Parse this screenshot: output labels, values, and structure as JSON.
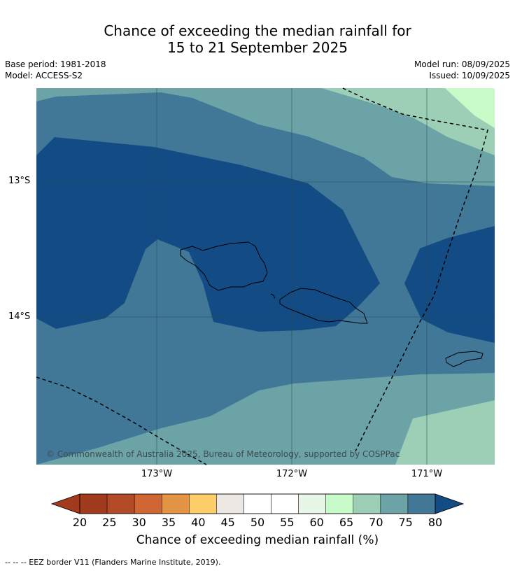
{
  "title": {
    "line1": "Chance of exceeding the median rainfall for",
    "line2": "15 to 21 September 2025"
  },
  "meta": {
    "base_period": "Base period: 1981-2018",
    "model": "Model: ACCESS-S2",
    "model_run": "Model run: 08/09/2025",
    "issued": "Issued: 10/09/2025"
  },
  "map": {
    "lat_labels": [
      "13°S",
      "14°S"
    ],
    "lon_labels": [
      "173°W",
      "172°W",
      "171°W"
    ],
    "copyright": "© Commonwealth of Australia 2025, Bureau of Meteorology, supported by COSPPac"
  },
  "colorbar": {
    "ticks": [
      "20",
      "25",
      "30",
      "35",
      "40",
      "45",
      "50",
      "55",
      "60",
      "65",
      "70",
      "75",
      "80"
    ],
    "colors": [
      "#a23a1e",
      "#b24b26",
      "#d06633",
      "#e39545",
      "#fdcd69",
      "#ece7e3",
      "#ffffff",
      "#ffffff",
      "#e8f6e8",
      "#c9fbc9",
      "#9ccfb6",
      "#6ca3a6",
      "#417898"
    ],
    "under_color": "#a23a1e",
    "over_color": "#134b84",
    "label": "Chance of exceeding median rainfall (%)"
  },
  "footer": "--  --  -- EEZ border V11 (Flanders Marine Institute, 2019)."
}
